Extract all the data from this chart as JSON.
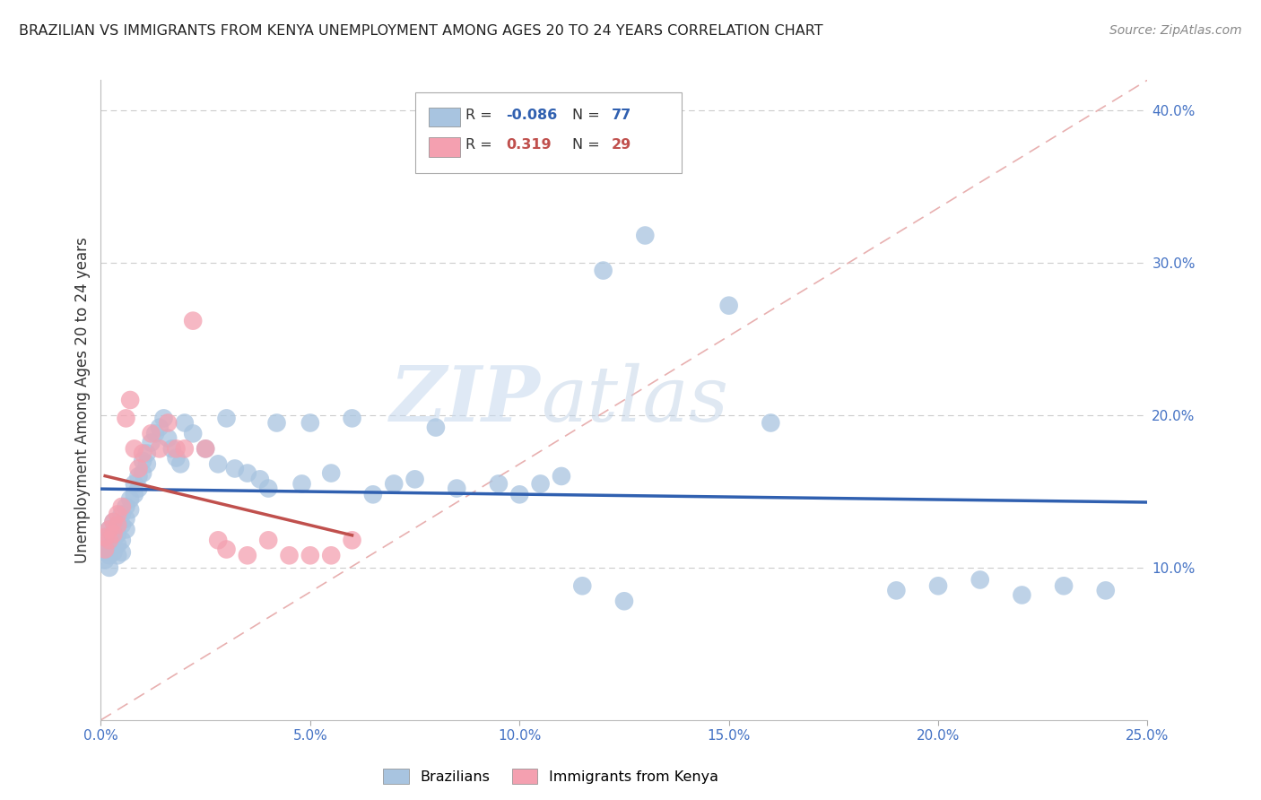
{
  "title": "BRAZILIAN VS IMMIGRANTS FROM KENYA UNEMPLOYMENT AMONG AGES 20 TO 24 YEARS CORRELATION CHART",
  "source": "Source: ZipAtlas.com",
  "ylabel": "Unemployment Among Ages 20 to 24 years",
  "r_brazilian": -0.086,
  "n_brazilian": 77,
  "r_kenya": 0.319,
  "n_kenya": 29,
  "color_brazilian": "#a8c4e0",
  "color_kenya": "#f4a0b0",
  "color_trend_brazilian": "#3060b0",
  "color_trend_kenya": "#c0504d",
  "xlim": [
    0.0,
    0.25
  ],
  "ylim": [
    0.0,
    0.42
  ],
  "watermark_zip": "ZIP",
  "watermark_atlas": "atlas",
  "brazilian_x": [
    0.001,
    0.001,
    0.001,
    0.001,
    0.002,
    0.002,
    0.002,
    0.002,
    0.002,
    0.003,
    0.003,
    0.003,
    0.003,
    0.004,
    0.004,
    0.004,
    0.004,
    0.005,
    0.005,
    0.005,
    0.005,
    0.006,
    0.006,
    0.006,
    0.007,
    0.007,
    0.008,
    0.008,
    0.009,
    0.009,
    0.01,
    0.01,
    0.011,
    0.011,
    0.012,
    0.013,
    0.014,
    0.015,
    0.016,
    0.017,
    0.018,
    0.019,
    0.02,
    0.022,
    0.025,
    0.028,
    0.03,
    0.032,
    0.035,
    0.038,
    0.04,
    0.042,
    0.048,
    0.05,
    0.055,
    0.06,
    0.065,
    0.07,
    0.075,
    0.08,
    0.085,
    0.095,
    0.1,
    0.105,
    0.11,
    0.12,
    0.13,
    0.15,
    0.16,
    0.19,
    0.2,
    0.21,
    0.22,
    0.23,
    0.24,
    0.115,
    0.125
  ],
  "brazilian_y": [
    0.12,
    0.115,
    0.11,
    0.105,
    0.125,
    0.118,
    0.112,
    0.108,
    0.1,
    0.13,
    0.122,
    0.118,
    0.11,
    0.128,
    0.122,
    0.115,
    0.108,
    0.135,
    0.128,
    0.118,
    0.11,
    0.14,
    0.132,
    0.125,
    0.145,
    0.138,
    0.155,
    0.148,
    0.16,
    0.152,
    0.17,
    0.162,
    0.175,
    0.168,
    0.182,
    0.188,
    0.192,
    0.198,
    0.185,
    0.178,
    0.172,
    0.168,
    0.195,
    0.188,
    0.178,
    0.168,
    0.198,
    0.165,
    0.162,
    0.158,
    0.152,
    0.195,
    0.155,
    0.195,
    0.162,
    0.198,
    0.148,
    0.155,
    0.158,
    0.192,
    0.152,
    0.155,
    0.148,
    0.155,
    0.16,
    0.295,
    0.318,
    0.272,
    0.195,
    0.085,
    0.088,
    0.092,
    0.082,
    0.088,
    0.085,
    0.088,
    0.078
  ],
  "kenya_x": [
    0.001,
    0.001,
    0.002,
    0.002,
    0.003,
    0.003,
    0.004,
    0.004,
    0.005,
    0.006,
    0.007,
    0.008,
    0.009,
    0.01,
    0.012,
    0.014,
    0.016,
    0.018,
    0.02,
    0.022,
    0.025,
    0.028,
    0.03,
    0.035,
    0.04,
    0.045,
    0.05,
    0.055,
    0.06
  ],
  "kenya_y": [
    0.12,
    0.112,
    0.125,
    0.118,
    0.13,
    0.122,
    0.135,
    0.128,
    0.14,
    0.198,
    0.21,
    0.178,
    0.165,
    0.175,
    0.188,
    0.178,
    0.195,
    0.178,
    0.178,
    0.262,
    0.178,
    0.118,
    0.112,
    0.108,
    0.118,
    0.108,
    0.108,
    0.108,
    0.118
  ]
}
